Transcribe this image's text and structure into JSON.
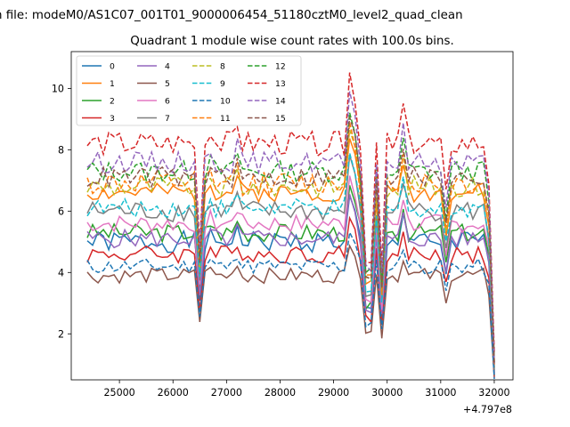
{
  "figure": {
    "suptitle": "n file: modeM0/AS1C07_001T01_9000006454_51180cztM0_level2_quad_clean",
    "title": "Quadrant 1 module wise count rates with 100.0s bins.",
    "offset_label": "+4.797e8"
  },
  "chart_data": {
    "type": "line",
    "title": "Quadrant 1 module wise count rates with 100.0s bins.",
    "xlabel": "",
    "ylabel": "",
    "x_offset": 479700000,
    "xlim": [
      24100,
      32350
    ],
    "ylim": [
      0.5,
      11.2
    ],
    "xticks": [
      25000,
      26000,
      27000,
      28000,
      29000,
      30000,
      31000,
      32000
    ],
    "xtick_labels": [
      "25000",
      "26000",
      "27000",
      "28000",
      "29000",
      "30000",
      "31000",
      "32000"
    ],
    "yticks": [
      2,
      4,
      6,
      8,
      10
    ],
    "ytick_labels": [
      "2",
      "4",
      "6",
      "8",
      "10"
    ],
    "grid": false,
    "legend": {
      "placement": "top-left",
      "ncol": 4
    },
    "x_start": 24400,
    "x_step": 100,
    "n_points": 77,
    "series": [
      {
        "name": "0",
        "color": "#1f77b4",
        "dash": "solid",
        "base": 5.0,
        "noise": 0.35,
        "seed": 1
      },
      {
        "name": "1",
        "color": "#ff7f0e",
        "dash": "solid",
        "base": 6.6,
        "noise": 0.3,
        "seed": 2
      },
      {
        "name": "2",
        "color": "#2ca02c",
        "dash": "solid",
        "base": 5.3,
        "noise": 0.3,
        "seed": 3
      },
      {
        "name": "3",
        "color": "#d62728",
        "dash": "solid",
        "base": 4.6,
        "noise": 0.3,
        "seed": 4
      },
      {
        "name": "4",
        "color": "#9467bd",
        "dash": "solid",
        "base": 5.1,
        "noise": 0.3,
        "seed": 5
      },
      {
        "name": "5",
        "color": "#8c564b",
        "dash": "solid",
        "base": 3.9,
        "noise": 0.25,
        "seed": 6
      },
      {
        "name": "6",
        "color": "#e377c2",
        "dash": "solid",
        "base": 5.6,
        "noise": 0.3,
        "seed": 7
      },
      {
        "name": "7",
        "color": "#7f7f7f",
        "dash": "solid",
        "base": 6.0,
        "noise": 0.35,
        "seed": 8
      },
      {
        "name": "8",
        "color": "#bcbd22",
        "dash": "dashed",
        "base": 6.8,
        "noise": 0.35,
        "seed": 9
      },
      {
        "name": "9",
        "color": "#17becf",
        "dash": "dashed",
        "base": 6.1,
        "noise": 0.3,
        "seed": 10
      },
      {
        "name": "10",
        "color": "#1f77b4",
        "dash": "dashed",
        "base": 4.2,
        "noise": 0.25,
        "seed": 11
      },
      {
        "name": "11",
        "color": "#ff7f0e",
        "dash": "dashed",
        "base": 6.9,
        "noise": 0.4,
        "seed": 12
      },
      {
        "name": "12",
        "color": "#2ca02c",
        "dash": "dashed",
        "base": 7.3,
        "noise": 0.35,
        "seed": 13
      },
      {
        "name": "13",
        "color": "#d62728",
        "dash": "dashed",
        "base": 8.2,
        "noise": 0.4,
        "seed": 14
      },
      {
        "name": "14",
        "color": "#9467bd",
        "dash": "dashed",
        "base": 7.6,
        "noise": 0.35,
        "seed": 15
      },
      {
        "name": "15",
        "color": "#8c564b",
        "dash": "dashed",
        "base": 7.1,
        "noise": 0.35,
        "seed": 16
      }
    ],
    "features": [
      {
        "x": 26500,
        "factor": 0.62
      },
      {
        "x": 26700,
        "factor": 1.05
      },
      {
        "x": 27200,
        "factor": 1.08
      },
      {
        "x": 29300,
        "factor": 1.28
      },
      {
        "x": 29400,
        "factor": 1.18
      },
      {
        "x": 29600,
        "factor": 0.55
      },
      {
        "x": 29700,
        "factor": 0.55
      },
      {
        "x": 29900,
        "factor": 0.5
      },
      {
        "x": 30300,
        "factor": 1.15
      },
      {
        "x": 31100,
        "factor": 0.8
      },
      {
        "x": 31900,
        "factor": 0.85
      },
      {
        "x": 32000,
        "factor": 0.15
      }
    ]
  }
}
